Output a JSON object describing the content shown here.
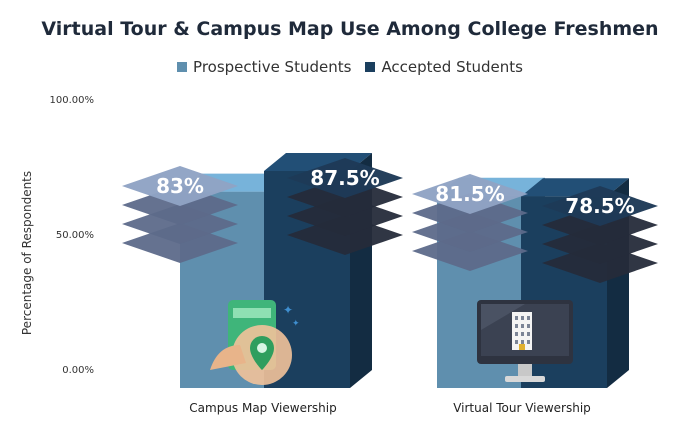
{
  "chart_data": {
    "type": "bar",
    "title": "Virtual Tour & Campus Map Use Among College Freshmen",
    "xlabel": "",
    "ylabel": "Percentage of Respondents",
    "categories": [
      "Campus Map Viewership",
      "Virtual Tour Viewership"
    ],
    "series": [
      {
        "name": "Prospective Students",
        "values": [
          83,
          81.5
        ],
        "labels": [
          "83%",
          "81.5%"
        ],
        "color": "#5f8fae"
      },
      {
        "name": "Accepted Students",
        "values": [
          87.5,
          78.5
        ],
        "labels": [
          "87.5%",
          "78.5%"
        ],
        "color": "#1b3f5e"
      }
    ],
    "yticks": [
      {
        "value": 0,
        "label": "0.00%"
      },
      {
        "value": 50,
        "label": "50.00%"
      },
      {
        "value": 100,
        "label": "100.00%"
      }
    ],
    "ylim": [
      0,
      100
    ],
    "legend_position": "top-center",
    "grid": false
  },
  "icons": [
    "campus-map-phone-icon",
    "virtual-tour-monitor-icon"
  ]
}
